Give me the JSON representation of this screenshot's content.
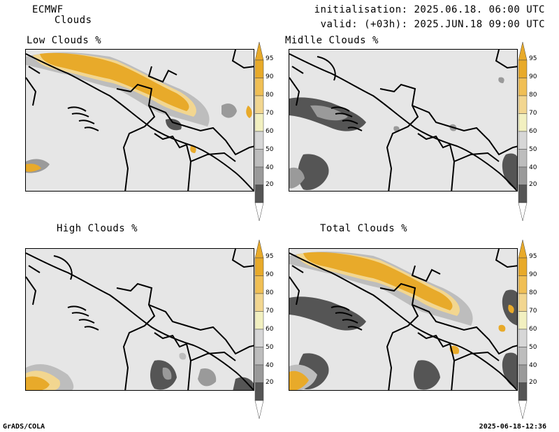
{
  "header": {
    "model": "ECMWF",
    "product": "Clouds",
    "init": "initialisation: 2025.06.18. 06:00 UTC",
    "valid": "valid: (+03h): 2025.JUN.18 09:00 UTC"
  },
  "panels": [
    {
      "title": "Low Clouds %"
    },
    {
      "title": "Midlle Clouds %"
    },
    {
      "title": "High Clouds %"
    },
    {
      "title": "Total Clouds %"
    }
  ],
  "colorbar": {
    "levels": [
      "95",
      "90",
      "80",
      "70",
      "60",
      "50",
      "40",
      "20"
    ],
    "colors": {
      "c95": "#e8aa2a",
      "c90": "#f0bf55",
      "c80": "#f2d690",
      "c70": "#f2f0c0",
      "c60": "#d7d7d7",
      "c50": "#bdbdbd",
      "c40": "#9a9a9a",
      "c20": "#555555",
      "low": "#ffffff",
      "background": "#e6e6e6"
    }
  },
  "footer": {
    "left": "GrADS/COLA",
    "right": "2025-06-18-12:36"
  }
}
